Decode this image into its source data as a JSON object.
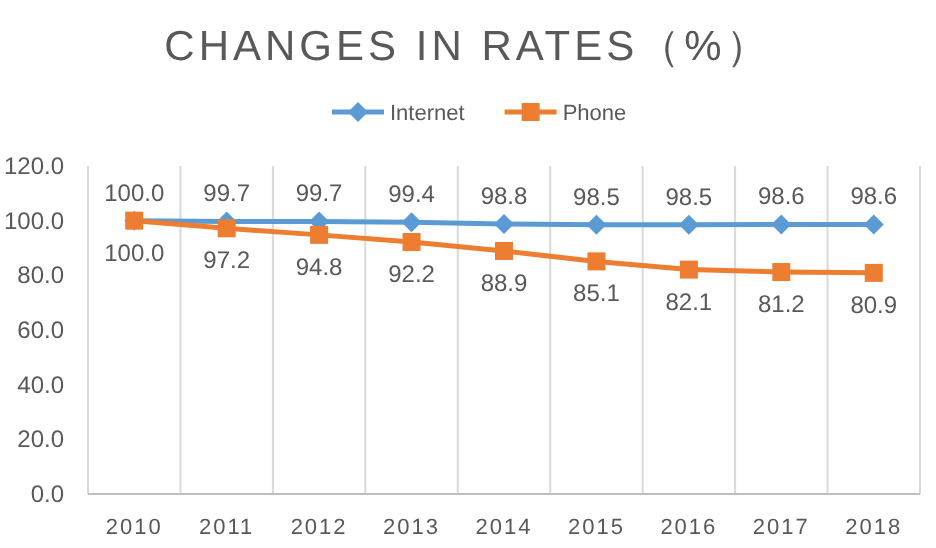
{
  "chart_data": {
    "type": "line",
    "title": "CHANGES IN RATES（%）",
    "categories": [
      "2010",
      "2011",
      "2012",
      "2013",
      "2014",
      "2015",
      "2016",
      "2017",
      "2018"
    ],
    "series": [
      {
        "name": "Internet",
        "color": "#5b9bd5",
        "marker": "diamond",
        "values": [
          100.0,
          99.7,
          99.7,
          99.4,
          98.8,
          98.5,
          98.5,
          98.6,
          98.6
        ],
        "value_labels": [
          "100.0",
          "99.7",
          "99.7",
          "99.4",
          "98.8",
          "98.5",
          "98.5",
          "98.6",
          "98.6"
        ]
      },
      {
        "name": "Phone",
        "color": "#ed7d31",
        "marker": "square",
        "values": [
          100.0,
          97.2,
          94.8,
          92.2,
          88.9,
          85.1,
          82.1,
          81.2,
          80.9
        ],
        "value_labels": [
          "100.0",
          "97.2",
          "94.8",
          "92.2",
          "88.9",
          "85.1",
          "82.1",
          "81.2",
          "80.9"
        ]
      }
    ],
    "ylim": [
      0,
      120
    ],
    "yticks": [
      {
        "value": 0,
        "label": "0.0"
      },
      {
        "value": 20,
        "label": "20.0"
      },
      {
        "value": 40,
        "label": "40.0"
      },
      {
        "value": 60,
        "label": "60.0"
      },
      {
        "value": 80,
        "label": "80.0"
      },
      {
        "value": 100,
        "label": "100.0"
      },
      {
        "value": 120,
        "label": "120.0"
      }
    ],
    "grid": "x",
    "legend": "top",
    "line_style": "solid"
  }
}
